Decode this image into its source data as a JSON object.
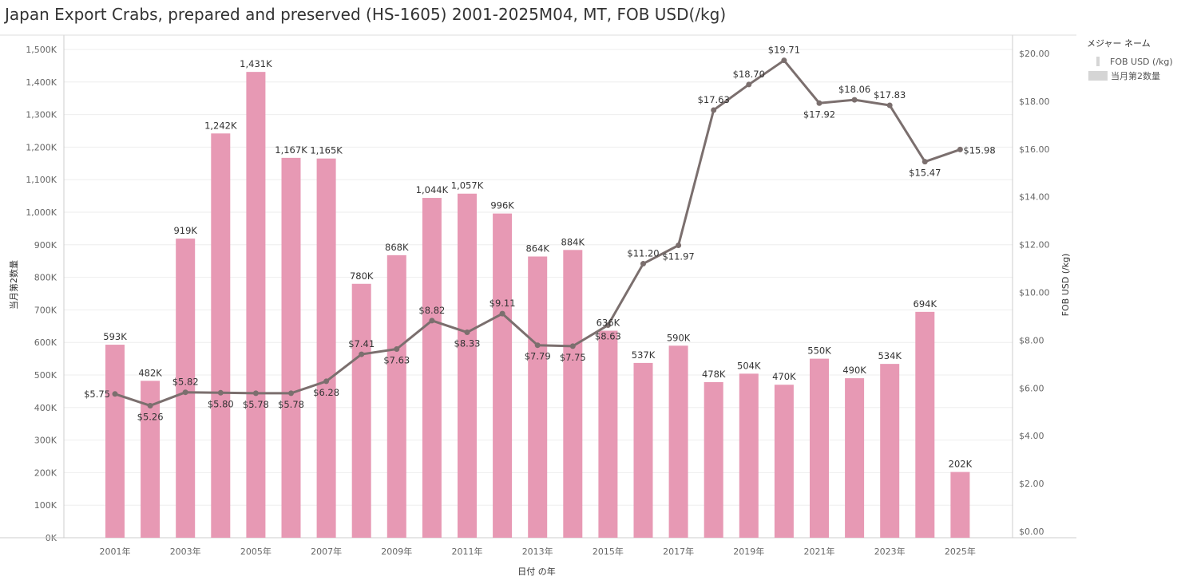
{
  "title": "Japan Export Crabs, prepared and preserved (HS-1605) 2001-2025M04, MT, FOB USD(/kg)",
  "legend": {
    "title": "メジャー ネーム",
    "items": [
      {
        "label": "FOB USD (/kg)",
        "swatch": "line"
      },
      {
        "label": "当月第2数量",
        "swatch": "box"
      }
    ]
  },
  "colors": {
    "bar": "#e799b4",
    "line": "#7b6f6e",
    "grid": "#eeeeee",
    "axis": "#cccccc"
  },
  "chart_data": {
    "type": "bar",
    "categories": [
      "2001年",
      "2002年",
      "2003年",
      "2004年",
      "2005年",
      "2006年",
      "2007年",
      "2008年",
      "2009年",
      "2010年",
      "2011年",
      "2012年",
      "2013年",
      "2014年",
      "2015年",
      "2016年",
      "2017年",
      "2018年",
      "2019年",
      "2020年",
      "2021年",
      "2022年",
      "2023年",
      "2024年",
      "2025年"
    ],
    "x_tick_labels": [
      "2001年",
      "2003年",
      "2005年",
      "2007年",
      "2009年",
      "2011年",
      "2013年",
      "2015年",
      "2017年",
      "2019年",
      "2021年",
      "2023年",
      "2025年"
    ],
    "xlabel": "日付 の年",
    "ylabel": "当月第2数量",
    "y2label": "FOB USD (/kg)",
    "ylim": [
      0,
      1530000
    ],
    "y2lim": [
      0,
      20.6
    ],
    "y_ticks": [
      {
        "v": 0,
        "label": "0K"
      },
      {
        "v": 100000,
        "label": "100K"
      },
      {
        "v": 200000,
        "label": "200K"
      },
      {
        "v": 300000,
        "label": "300K"
      },
      {
        "v": 400000,
        "label": "400K"
      },
      {
        "v": 500000,
        "label": "500K"
      },
      {
        "v": 600000,
        "label": "600K"
      },
      {
        "v": 700000,
        "label": "700K"
      },
      {
        "v": 800000,
        "label": "800K"
      },
      {
        "v": 900000,
        "label": "900K"
      },
      {
        "v": 1000000,
        "label": "1,000K"
      },
      {
        "v": 1100000,
        "label": "1,100K"
      },
      {
        "v": 1200000,
        "label": "1,200K"
      },
      {
        "v": 1300000,
        "label": "1,300K"
      },
      {
        "v": 1400000,
        "label": "1,400K"
      },
      {
        "v": 1500000,
        "label": "1,500K"
      }
    ],
    "y2_ticks": [
      {
        "v": 0,
        "label": "$0.00"
      },
      {
        "v": 2,
        "label": "$2.00"
      },
      {
        "v": 4,
        "label": "$4.00"
      },
      {
        "v": 6,
        "label": "$6.00"
      },
      {
        "v": 8,
        "label": "$8.00"
      },
      {
        "v": 10,
        "label": "$10.00"
      },
      {
        "v": 12,
        "label": "$12.00"
      },
      {
        "v": 14,
        "label": "$14.00"
      },
      {
        "v": 16,
        "label": "$16.00"
      },
      {
        "v": 18,
        "label": "$18.00"
      },
      {
        "v": 20,
        "label": "$20.00"
      }
    ],
    "series": [
      {
        "name": "当月第2数量",
        "type": "bar",
        "values": [
          593000,
          482000,
          919000,
          1242000,
          1431000,
          1167000,
          1165000,
          780000,
          868000,
          1044000,
          1057000,
          996000,
          864000,
          884000,
          636000,
          537000,
          590000,
          478000,
          504000,
          470000,
          550000,
          490000,
          534000,
          694000,
          202000
        ],
        "labels": [
          "593K",
          "482K",
          "919K",
          "1,242K",
          "1,431K",
          "1,167K",
          "1,165K",
          "780K",
          "868K",
          "1,044K",
          "1,057K",
          "996K",
          "864K",
          "884K",
          "636K",
          "537K",
          "590K",
          "478K",
          "504K",
          "470K",
          "550K",
          "490K",
          "534K",
          "694K",
          "202K"
        ]
      },
      {
        "name": "FOB USD (/kg)",
        "type": "line",
        "values": [
          5.75,
          5.26,
          5.82,
          5.8,
          5.78,
          5.78,
          6.28,
          7.41,
          7.63,
          8.82,
          8.33,
          9.11,
          7.79,
          7.75,
          8.63,
          11.2,
          11.97,
          17.63,
          18.7,
          19.71,
          17.92,
          18.06,
          17.83,
          15.47,
          15.98
        ],
        "labels": [
          "$5.75",
          "$5.26",
          "$5.82",
          "$5.80",
          "$5.78",
          "$5.78",
          "$6.28",
          "$7.41",
          "$7.63",
          "$8.82",
          "$8.33",
          "$9.11",
          "$7.79",
          "$7.75",
          "$8.63",
          "$11.20",
          "$11.97",
          "$17.63",
          "$18.70",
          "$19.71",
          "$17.92",
          "$18.06",
          "$17.83",
          "$15.47",
          "$15.98"
        ]
      }
    ]
  }
}
